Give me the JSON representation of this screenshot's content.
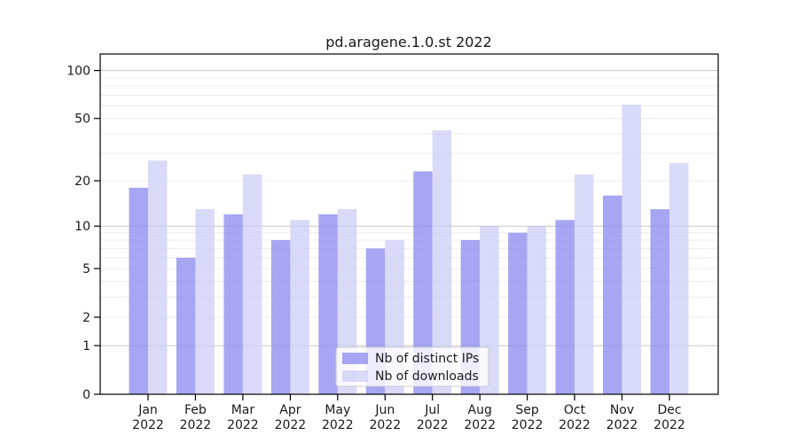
{
  "chart_data": {
    "type": "bar",
    "title": "pd.aragene.1.0.st 2022",
    "categories": [
      "Jan",
      "Feb",
      "Mar",
      "Apr",
      "May",
      "Jun",
      "Jul",
      "Aug",
      "Sep",
      "Oct",
      "Nov",
      "Dec"
    ],
    "category_year": "2022",
    "series": [
      {
        "name": "Nb of distinct IPs",
        "color": "#9090ef",
        "apparent_color": "#a6a6f2",
        "values": [
          18,
          6,
          12,
          8,
          12,
          7,
          23,
          8,
          9,
          11,
          16,
          13
        ]
      },
      {
        "name": "Nb of downloads",
        "color": "#d0d0f6",
        "apparent_color": "#dadaf8",
        "values": [
          27,
          13,
          22,
          11,
          13,
          8,
          42,
          10,
          10,
          22,
          61,
          26
        ]
      }
    ],
    "yscale": "log1p",
    "ylim": [
      0,
      128
    ],
    "y_ticks": [
      0,
      1,
      2,
      5,
      10,
      20,
      50,
      100
    ],
    "y_minor_gridlines": [
      3,
      4,
      6,
      7,
      8,
      9,
      30,
      40,
      60,
      70,
      80,
      90
    ],
    "y_decade_gridlines": [
      1,
      10,
      100
    ],
    "grid": "horizontal",
    "legend_position": "lower center",
    "colors": {
      "grid_minor": "#ececec",
      "grid_decade": "#c6c6c6",
      "axis": "#000000",
      "text": "#1a1a1a",
      "legend_border": "#cccccc"
    }
  }
}
